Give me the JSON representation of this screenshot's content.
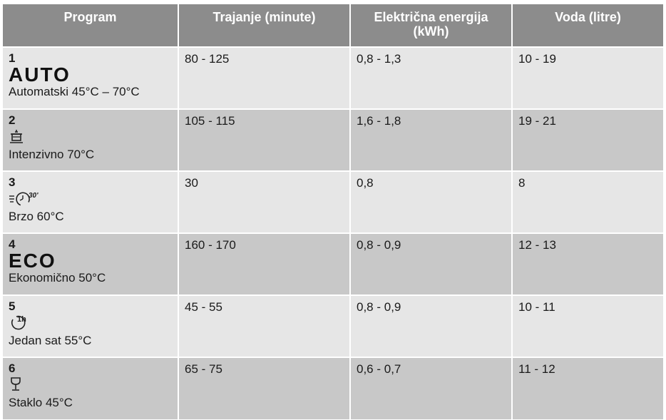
{
  "table": {
    "headers": [
      "Program",
      "Trajanje (minute)",
      "Električna energija (kWh)",
      "Voda (litre)"
    ],
    "rows": [
      {
        "number": "1",
        "icon": "auto-icon",
        "icon_text": "AUTO",
        "name": "Automatski 45°C – 70°C",
        "duration": "80 - 125",
        "energy": "0,8 - 1,3",
        "water": "10 - 19"
      },
      {
        "number": "2",
        "icon": "intensive-pot-icon",
        "icon_text": "",
        "name": "Intenzivno 70°C",
        "duration": "105 - 115",
        "energy": "1,6 - 1,8",
        "water": "19 - 21"
      },
      {
        "number": "3",
        "icon": "quick-30-icon",
        "icon_text": "30'",
        "name": "Brzo 60°C",
        "duration": "30",
        "energy": "0,8",
        "water": "8"
      },
      {
        "number": "4",
        "icon": "eco-icon",
        "icon_text": "ECO",
        "name": "Ekonomično 50°C",
        "duration": "160 - 170",
        "energy": "0,8 - 0,9",
        "water": "12 - 13"
      },
      {
        "number": "5",
        "icon": "one-hour-icon",
        "icon_text": "1h",
        "name": "Jedan sat 55°C",
        "duration": "45 - 55",
        "energy": "0,8 - 0,9",
        "water": "10 - 11"
      },
      {
        "number": "6",
        "icon": "glass-icon",
        "icon_text": "",
        "name": "Staklo 45°C",
        "duration": "65 - 75",
        "energy": "0,6 - 0,7",
        "water": "11 - 12"
      }
    ]
  },
  "colors": {
    "header_bg": "#8c8c8c",
    "row_light": "#e6e6e6",
    "row_dark": "#c8c8c8"
  }
}
